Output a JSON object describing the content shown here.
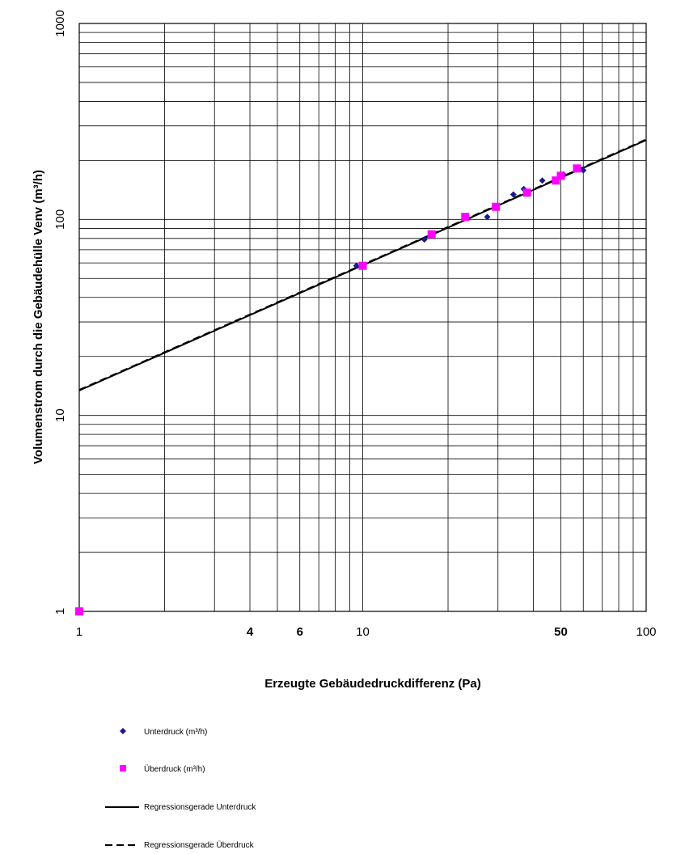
{
  "chart_data": {
    "type": "scatter",
    "title": "",
    "xlabel": "Erzeugte Gebäudedruckdifferenz (Pa)",
    "ylabel": "Volumenstrom durch die Gebäudehülle Venv (m³/h)",
    "xscale": "log",
    "yscale": "log",
    "xlim": [
      1,
      100
    ],
    "ylim": [
      1,
      1000
    ],
    "grid": true,
    "legend_position": "bottom",
    "x_ticks": [
      {
        "value": 1,
        "label": "1",
        "bold": false,
        "color": "#000000"
      },
      {
        "value": 4,
        "label": "4",
        "bold": true,
        "color": "#000000"
      },
      {
        "value": 6,
        "label": "6",
        "bold": true,
        "color": "#000000"
      },
      {
        "value": 10,
        "label": "10",
        "bold": false,
        "color": "#000000"
      },
      {
        "value": 50,
        "label": "50",
        "bold": true,
        "color": "#e8001c"
      },
      {
        "value": 100,
        "label": "100",
        "bold": false,
        "color": "#000000"
      }
    ],
    "y_ticks": [
      {
        "value": 1,
        "label": "1"
      },
      {
        "value": 10,
        "label": "10"
      },
      {
        "value": 100,
        "label": "100"
      },
      {
        "value": 1000,
        "label": "1000"
      }
    ],
    "series": [
      {
        "name": "Unterdruck (m³/h)",
        "marker": "diamond",
        "color": "#1a1a8c",
        "points": [
          [
            9.5,
            58
          ],
          [
            16.5,
            79
          ],
          [
            27.5,
            103
          ],
          [
            34,
            134
          ],
          [
            37,
            143
          ],
          [
            43,
            158
          ],
          [
            51,
            170
          ],
          [
            60,
            178
          ]
        ]
      },
      {
        "name": "Überdruck (m³/h)",
        "marker": "square",
        "color": "#ff00ff",
        "points": [
          [
            1,
            1
          ],
          [
            10,
            58
          ],
          [
            17.5,
            84
          ],
          [
            23,
            103
          ],
          [
            29.5,
            116
          ],
          [
            38,
            137
          ],
          [
            48,
            158
          ],
          [
            50,
            167
          ],
          [
            57,
            182
          ]
        ]
      },
      {
        "name": "Regressionsgerade Unterdruck",
        "type": "line",
        "style": "solid",
        "color": "#000000",
        "points": [
          [
            1,
            13.4
          ],
          [
            100,
            254
          ]
        ]
      },
      {
        "name": "Regressionsgerade Überdruck",
        "type": "line",
        "style": "dashed",
        "color": "#000000",
        "points": [
          [
            1,
            13.5
          ],
          [
            100,
            256
          ]
        ]
      }
    ]
  }
}
